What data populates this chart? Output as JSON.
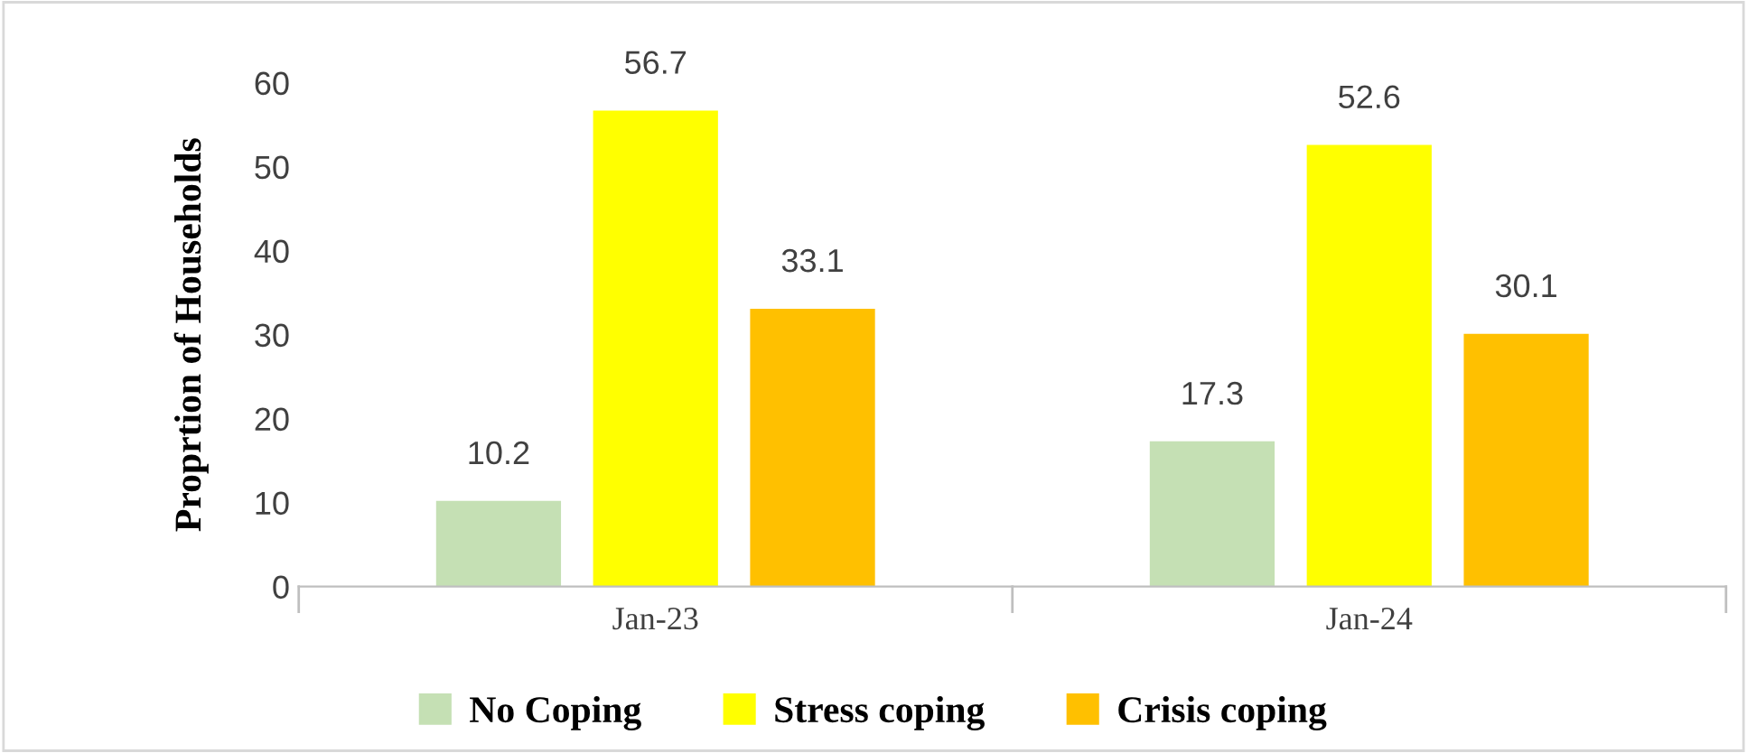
{
  "chart_data": {
    "type": "bar",
    "ylabel": "Proprtion of Households",
    "categories": [
      "Jan-23",
      "Jan-24"
    ],
    "series": [
      {
        "name": "No Coping",
        "color": "#c5e0b4",
        "values": [
          10.2,
          17.3
        ]
      },
      {
        "name": "Stress coping",
        "color": "#ffff00",
        "values": [
          56.7,
          52.6
        ]
      },
      {
        "name": "Crisis coping",
        "color": "#ffc000",
        "values": [
          33.1,
          30.1
        ]
      }
    ],
    "ylim": [
      0,
      60
    ],
    "yticks": [
      0,
      10,
      20,
      30,
      40,
      50,
      60
    ],
    "data_labels": true,
    "grid": false,
    "legend": "bottom"
  }
}
